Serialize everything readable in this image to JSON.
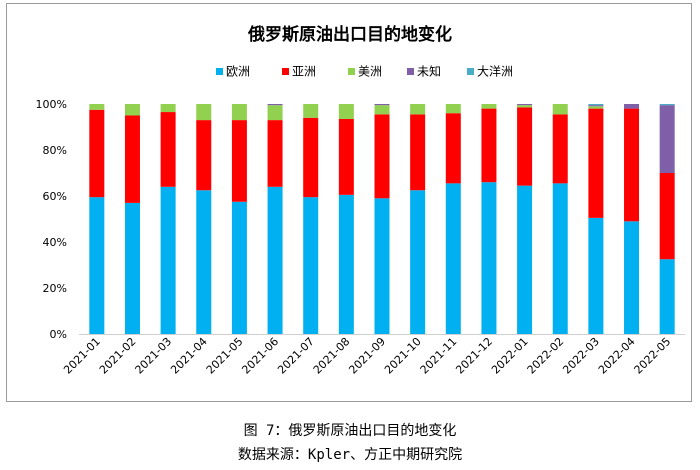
{
  "caption": {
    "figure": "图 7：俄罗斯原油出口目的地变化",
    "source": "数据来源：Kpler、方正中期研究院"
  },
  "chart_data": {
    "type": "bar",
    "stacked": true,
    "title": "俄罗斯原油出口目的地变化",
    "categories": [
      "2021-01",
      "2021-02",
      "2021-03",
      "2021-04",
      "2021-05",
      "2021-06",
      "2021-07",
      "2021-08",
      "2021-09",
      "2021-10",
      "2021-11",
      "2021-12",
      "2022-01",
      "2022-02",
      "2022-03",
      "2022-04",
      "2022-05"
    ],
    "ylim": [
      0,
      100
    ],
    "yticks": [
      0,
      20,
      40,
      60,
      80,
      100
    ],
    "ytick_labels": [
      "0%",
      "20%",
      "40%",
      "60%",
      "80%",
      "100%"
    ],
    "legend_position": "top",
    "grid": false,
    "series": [
      {
        "name": "欧洲",
        "color": "#00b0f0",
        "values": [
          59.5,
          57,
          64,
          62.5,
          57.5,
          64,
          59.5,
          60.5,
          59,
          62.5,
          65.5,
          66,
          64.5,
          65.5,
          50.5,
          49,
          32.5
        ]
      },
      {
        "name": "亚洲",
        "color": "#ff0000",
        "values": [
          38,
          38,
          32.5,
          30.5,
          35.5,
          29,
          34.5,
          33,
          36.5,
          33,
          30.5,
          32,
          34,
          30,
          47.5,
          49,
          37.5
        ]
      },
      {
        "name": "美洲",
        "color": "#92d050",
        "values": [
          2.5,
          5,
          3.5,
          7,
          7,
          6.5,
          6,
          6.5,
          4,
          4.5,
          4,
          2,
          1,
          4.5,
          1,
          0,
          0
        ]
      },
      {
        "name": "未知",
        "color": "#7f5fa8",
        "values": [
          0,
          0,
          0,
          0,
          0,
          0.5,
          0,
          0,
          0.5,
          0,
          0,
          0,
          0.5,
          0,
          0.5,
          2,
          29.5
        ]
      },
      {
        "name": "大洋洲",
        "color": "#4bacc6",
        "values": [
          0,
          0,
          0,
          0,
          0,
          0,
          0,
          0,
          0,
          0,
          0,
          0,
          0,
          0,
          0.5,
          0,
          0.5
        ]
      }
    ]
  }
}
